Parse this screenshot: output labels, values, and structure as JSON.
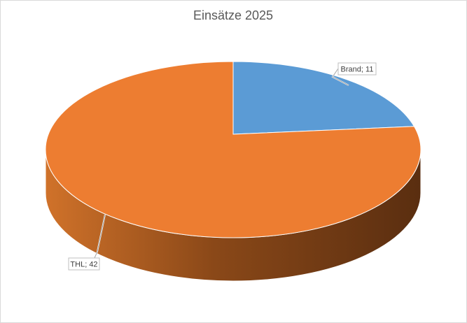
{
  "chart_data": {
    "type": "pie",
    "title": "Einsätze 2025",
    "categories": [
      "Brand",
      "THL"
    ],
    "values": [
      11,
      42
    ],
    "value_labels": [
      "Brand; 11",
      "THL; 42"
    ],
    "colors": [
      "#5b9bd5",
      "#ed7d31"
    ],
    "three_d": true
  }
}
